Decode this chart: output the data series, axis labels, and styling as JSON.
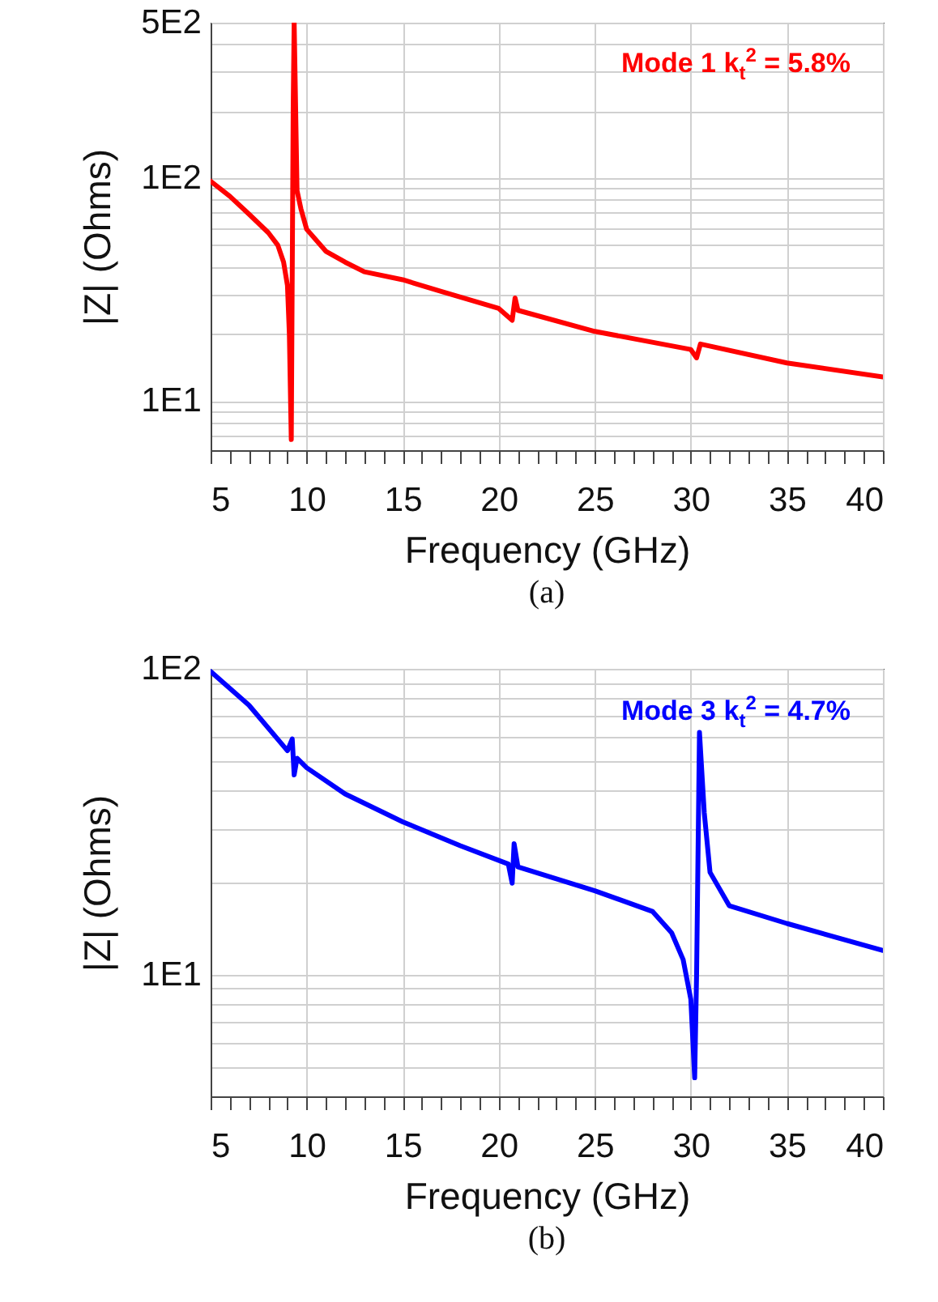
{
  "chart_data": [
    {
      "type": "line",
      "title": "(a)",
      "xlabel": "Frequency (GHz)",
      "ylabel": "|Z| (Ohms)",
      "log": "y",
      "grid": true,
      "line_style": "solid",
      "marker": "none",
      "annotations": [
        "Mode 1 k$_{t}$$^{2}$ = 5.8%"
      ],
      "xlim": [
        5,
        40
      ],
      "xticks": [
        5,
        {
          "value": 6,
          "label": null
        },
        {
          "value": 7,
          "label": null
        },
        {
          "value": 8,
          "label": null
        },
        {
          "value": 9,
          "label": null
        },
        10,
        {
          "value": 11,
          "label": null
        },
        {
          "value": 12,
          "label": null
        },
        {
          "value": 13,
          "label": null
        },
        {
          "value": 14,
          "label": null
        },
        15,
        {
          "value": 16,
          "label": null
        },
        {
          "value": 17,
          "label": null
        },
        {
          "value": 18,
          "label": null
        },
        {
          "value": 19,
          "label": null
        },
        20,
        {
          "value": 21,
          "label": null
        },
        {
          "value": 22,
          "label": null
        },
        {
          "value": 23,
          "label": null
        },
        {
          "value": 24,
          "label": null
        },
        25,
        {
          "value": 26,
          "label": null
        },
        {
          "value": 27,
          "label": null
        },
        {
          "value": 28,
          "label": null
        },
        {
          "value": 29,
          "label": null
        },
        30,
        {
          "value": 31,
          "label": null
        },
        {
          "value": 32,
          "label": null
        },
        {
          "value": 33,
          "label": null
        },
        {
          "value": 34,
          "label": null
        },
        35,
        {
          "value": 36,
          "label": null
        },
        {
          "value": 37,
          "label": null
        },
        {
          "value": 38,
          "label": null
        },
        {
          "value": 39,
          "label": null
        },
        40
      ],
      "ylim": [
        6,
        500
      ],
      "yticks": [
        {
          "value": 6,
          "label": null
        },
        {
          "value": 7,
          "label": null
        },
        {
          "value": 8,
          "label": null
        },
        {
          "value": 9,
          "label": null
        },
        {
          "value": 10,
          "label": "1E1"
        },
        {
          "value": 20,
          "label": null
        },
        {
          "value": 30,
          "label": null
        },
        {
          "value": 40,
          "label": null
        },
        {
          "value": 50,
          "label": null
        },
        {
          "value": 60,
          "label": null
        },
        {
          "value": 70,
          "label": null
        },
        {
          "value": 80,
          "label": null
        },
        {
          "value": 90,
          "label": null
        },
        {
          "value": 100,
          "label": "1E2"
        },
        {
          "value": 200,
          "label": null
        },
        {
          "value": 300,
          "label": null
        },
        {
          "value": 400,
          "label": null
        },
        {
          "value": 500,
          "label": "5E2"
        }
      ],
      "x": [
        5,
        6,
        7,
        8,
        8.5,
        8.8,
        9.0,
        9.1,
        9.2,
        9.3,
        9.35,
        9.5,
        9.7,
        10,
        11,
        12,
        13,
        15,
        17,
        20,
        20.7,
        20.85,
        21,
        25,
        30,
        30.3,
        30.5,
        35,
        40
      ],
      "series": [
        {
          "color": "#ff0000",
          "values": [
            97,
            83,
            69,
            57,
            50,
            42,
            33,
            20,
            6.7,
            210,
            500,
            88,
            73,
            59,
            47,
            42,
            38,
            35,
            31,
            26,
            23,
            29,
            25.5,
            20.5,
            17,
            15.6,
            18,
            14.8,
            12.8
          ]
        }
      ]
    },
    {
      "type": "line",
      "title": "(b)",
      "xlabel": "Frequency (GHz)",
      "ylabel": "|Z| (Ohms)",
      "log": "y",
      "grid": true,
      "line_style": "solid",
      "marker": "none",
      "annotations": [
        "Mode 3 k$_{t}$$^{2}$ = 4.7%"
      ],
      "xlim": [
        5,
        40
      ],
      "xticks": [
        5,
        {
          "value": 6,
          "label": null
        },
        {
          "value": 7,
          "label": null
        },
        {
          "value": 8,
          "label": null
        },
        {
          "value": 9,
          "label": null
        },
        10,
        {
          "value": 11,
          "label": null
        },
        {
          "value": 12,
          "label": null
        },
        {
          "value": 13,
          "label": null
        },
        {
          "value": 14,
          "label": null
        },
        15,
        {
          "value": 16,
          "label": null
        },
        {
          "value": 17,
          "label": null
        },
        {
          "value": 18,
          "label": null
        },
        {
          "value": 19,
          "label": null
        },
        20,
        {
          "value": 21,
          "label": null
        },
        {
          "value": 22,
          "label": null
        },
        {
          "value": 23,
          "label": null
        },
        {
          "value": 24,
          "label": null
        },
        25,
        {
          "value": 26,
          "label": null
        },
        {
          "value": 27,
          "label": null
        },
        {
          "value": 28,
          "label": null
        },
        {
          "value": 29,
          "label": null
        },
        30,
        {
          "value": 31,
          "label": null
        },
        {
          "value": 32,
          "label": null
        },
        {
          "value": 33,
          "label": null
        },
        {
          "value": 34,
          "label": null
        },
        35,
        {
          "value": 36,
          "label": null
        },
        {
          "value": 37,
          "label": null
        },
        {
          "value": 38,
          "label": null
        },
        {
          "value": 39,
          "label": null
        },
        40
      ],
      "ylim": [
        4,
        100
      ],
      "yticks": [
        {
          "value": 4,
          "label": null
        },
        {
          "value": 5,
          "label": null
        },
        {
          "value": 6,
          "label": null
        },
        {
          "value": 7,
          "label": null
        },
        {
          "value": 8,
          "label": null
        },
        {
          "value": 9,
          "label": null
        },
        {
          "value": 10,
          "label": "1E1"
        },
        {
          "value": 20,
          "label": null
        },
        {
          "value": 30,
          "label": null
        },
        {
          "value": 40,
          "label": null
        },
        {
          "value": 50,
          "label": null
        },
        {
          "value": 60,
          "label": null
        },
        {
          "value": 70,
          "label": null
        },
        {
          "value": 80,
          "label": null
        },
        {
          "value": 90,
          "label": null
        },
        {
          "value": 100,
          "label": "1E2"
        }
      ],
      "x": [
        5,
        7,
        9,
        9.25,
        9.35,
        9.5,
        10,
        12,
        15,
        18,
        20.5,
        20.7,
        20.8,
        21,
        25,
        28,
        29,
        29.6,
        30,
        30.2,
        30.3,
        30.45,
        30.7,
        31,
        32,
        35,
        40
      ],
      "series": [
        {
          "color": "#0000ff",
          "values": [
            98,
            76,
            54,
            59,
            45,
            51,
            47.5,
            39,
            31.6,
            26.4,
            23,
            19.9,
            26.8,
            22.5,
            18.8,
            16.1,
            13.7,
            11.2,
            8.3,
            4.6,
            10,
            62,
            33.8,
            21.6,
            16.8,
            14.7,
            12
          ]
        }
      ]
    }
  ]
}
